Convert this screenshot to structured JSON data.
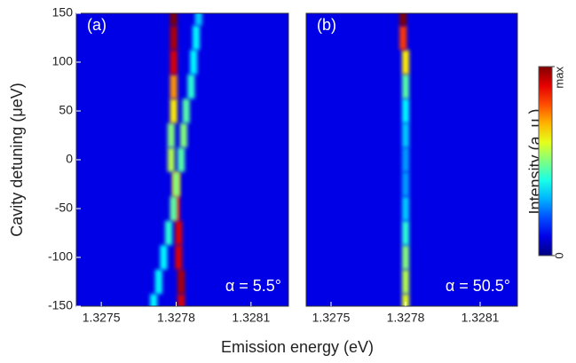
{
  "chart_data": [
    {
      "type": "heatmap-trace",
      "annotation": "(a)",
      "angle_label": "α = 5.5°",
      "xlim": [
        1.3274,
        1.32825
      ],
      "xticks": [
        1.3275,
        1.3278,
        1.3281
      ],
      "ylim": [
        -150,
        150
      ],
      "yticks": [
        -150,
        -100,
        -50,
        0,
        50,
        100,
        150
      ],
      "y": [
        -150,
        -125,
        -100,
        -75,
        -50,
        -25,
        0,
        25,
        50,
        75,
        100,
        125,
        150
      ],
      "series": [
        {
          "values": [
            1.32782,
            1.32782,
            1.32781,
            1.32781,
            1.3278,
            1.3278,
            1.32778,
            1.32778,
            1.32779,
            1.32779,
            1.32779,
            1.32779,
            1.32779
          ],
          "intensity": [
            0.9,
            0.95,
            0.9,
            0.9,
            0.85,
            0.75,
            0.5,
            0.45,
            0.6,
            0.7,
            0.9,
            0.95,
            1
          ]
        },
        {
          "values": [
            1.32771,
            1.32773,
            1.32775,
            1.32777,
            1.32779,
            1.3278,
            1.32782,
            1.32783,
            1.32784,
            1.32786,
            1.32787,
            1.32788,
            1.32789
          ],
          "intensity": [
            0.3,
            0.3,
            0.3,
            0.35,
            0.4,
            0.45,
            0.4,
            0.45,
            0.4,
            0.35,
            0.3,
            0.3,
            0.25
          ]
        }
      ]
    },
    {
      "type": "heatmap-trace",
      "annotation": "(b)",
      "angle_label": "α = 50.5°",
      "xlim": [
        1.3274,
        1.32825
      ],
      "xticks": [
        1.3275,
        1.3278,
        1.3281
      ],
      "ylim": [
        -150,
        150
      ],
      "y": [
        -150,
        -125,
        -100,
        -75,
        -50,
        -25,
        0,
        25,
        50,
        75,
        100,
        125,
        150
      ],
      "series": [
        {
          "values": [
            1.3278,
            1.3278,
            1.3278,
            1.3278,
            1.3278,
            1.3278,
            1.3278,
            1.3278,
            1.3278,
            1.3278,
            1.3278,
            1.32779,
            1.32779
          ],
          "intensity": [
            0.55,
            0.5,
            0.45,
            0.35,
            0.25,
            0.2,
            0.2,
            0.25,
            0.3,
            0.4,
            0.6,
            0.8,
            1
          ]
        }
      ]
    }
  ],
  "xlabel": "Emission energy (eV)",
  "ylabel": "Cavity detuning (μeV)",
  "colorbar": {
    "label": "Intensity (a. u.)",
    "lim": [
      0,
      1
    ],
    "ticks": [
      0,
      {
        "value": 1,
        "label": "max"
      }
    ]
  }
}
